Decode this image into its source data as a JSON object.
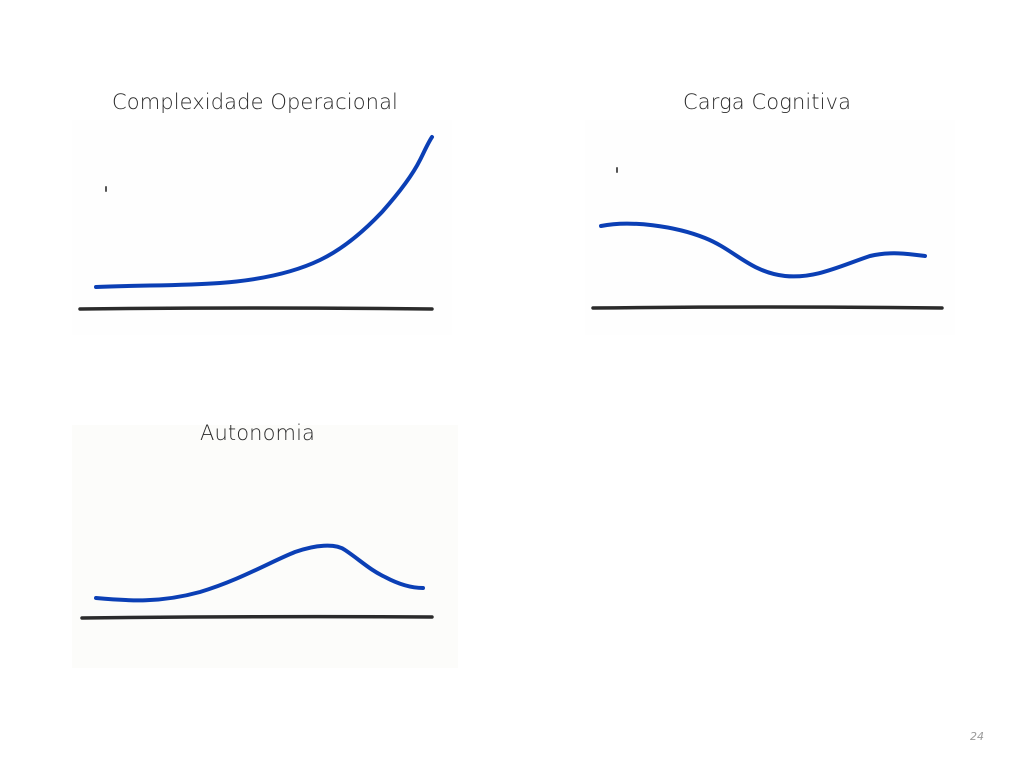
{
  "slide": {
    "page_number": "24"
  },
  "panels": [
    {
      "title": "Complexidade Operacional",
      "trend": "rising exponentially",
      "curve_color": "#0b3fb5",
      "baseline_color": "#2b2b2b"
    },
    {
      "title": "Carga Cognitiva",
      "trend": "high, dips in the middle, then partially recovers",
      "curve_color": "#0b3fb5",
      "baseline_color": "#2b2b2b"
    },
    {
      "title": "Autonomia",
      "trend": "low, rises to a peak, then declines",
      "curve_color": "#0b3fb5",
      "baseline_color": "#2b2b2b"
    }
  ]
}
